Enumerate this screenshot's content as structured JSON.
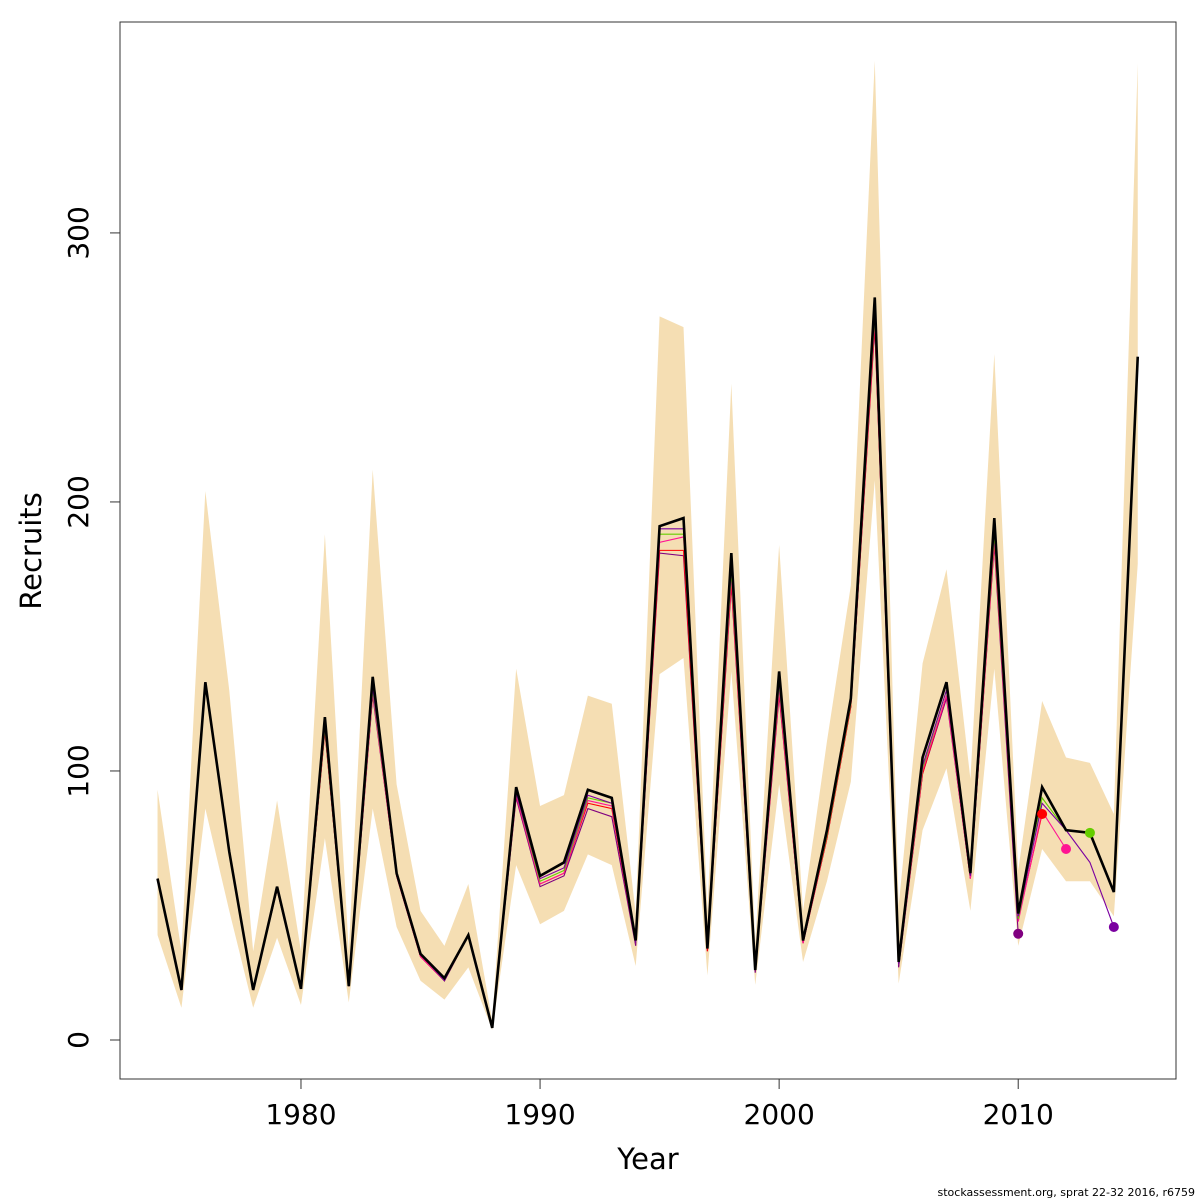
{
  "chart_data": {
    "type": "line",
    "x_label": "Year",
    "y_label": "Recruits",
    "footnote": "stockassessment.org, sprat 22-32 2016, r6759",
    "x": [
      1974,
      1975,
      1976,
      1977,
      1978,
      1979,
      1980,
      1981,
      1982,
      1983,
      1984,
      1985,
      1986,
      1987,
      1988,
      1989,
      1990,
      1991,
      1992,
      1993,
      1994,
      1995,
      1996,
      1997,
      1998,
      1999,
      2000,
      2001,
      2002,
      2003,
      2004,
      2005,
      2006,
      2007,
      2008,
      2009,
      2010,
      2011,
      2012,
      2013,
      2014,
      2015
    ],
    "xlim": [
      1972.43,
      2016.6
    ],
    "xticks": [
      1980,
      1990,
      2000,
      2010
    ],
    "ylim": [
      -14.5,
      378.4
    ],
    "yticks": [
      0,
      100,
      200,
      300
    ],
    "band": {
      "color": "#f5deb3",
      "upper": [
        93,
        33,
        204,
        130,
        33,
        89,
        33,
        188,
        33,
        212,
        95,
        48,
        35,
        58,
        7,
        138,
        87,
        91,
        128,
        125,
        47,
        269,
        265,
        48,
        244,
        36,
        184,
        48,
        111,
        169,
        364,
        50,
        140,
        175,
        97,
        255,
        63,
        126,
        105,
        103,
        84,
        363
      ],
      "lower": [
        39,
        12,
        86,
        48,
        12,
        38,
        13,
        75,
        14,
        86,
        42,
        22,
        15,
        27,
        3.7,
        65,
        43,
        48,
        69,
        65,
        27.5,
        136,
        142,
        24,
        137,
        20.5,
        95,
        29,
        59,
        96,
        208,
        21,
        78,
        101,
        48,
        138,
        35,
        71,
        59,
        59,
        46,
        177
      ]
    },
    "series": [
      {
        "color": "#800080",
        "values": [
          60,
          18.6,
          133,
          70,
          18.6,
          56,
          19,
          115,
          20,
          128,
          61,
          31,
          22,
          39,
          4.5,
          90,
          57,
          61,
          86,
          83,
          35,
          181,
          180,
          33,
          169,
          25,
          128,
          36,
          75,
          124,
          265,
          27,
          99,
          127,
          60,
          184,
          39.5,
          null,
          null,
          null,
          null,
          null
        ]
      },
      {
        "color": "#ff0000",
        "values": [
          60,
          18.6,
          133,
          70,
          18.6,
          56,
          19,
          115,
          20,
          129,
          61,
          31,
          22,
          39,
          4.5,
          91,
          58,
          62,
          88,
          86,
          36,
          182,
          182,
          33,
          170,
          26,
          129,
          36,
          75,
          124,
          266,
          28,
          99,
          128,
          60,
          185,
          45,
          84,
          null,
          null,
          null,
          null
        ]
      },
      {
        "color": "#ff1493",
        "values": [
          60,
          18.6,
          133,
          70,
          18.6,
          56,
          19,
          116,
          20,
          129,
          61,
          31,
          22,
          39,
          4.5,
          91,
          58,
          62,
          89,
          87,
          36,
          185,
          187,
          34,
          172,
          26,
          130,
          36,
          76,
          125,
          268,
          28,
          100,
          128,
          60,
          186,
          44,
          85,
          71,
          null,
          null,
          null
        ]
      },
      {
        "color": "#66cd00",
        "values": [
          60,
          18.6,
          133,
          70,
          18.6,
          56,
          19,
          116,
          20,
          130,
          62,
          32,
          22,
          39,
          4.5,
          92,
          59,
          63,
          90,
          88,
          36,
          188,
          188,
          34,
          174,
          26,
          132,
          37,
          76,
          125,
          270,
          28,
          101,
          130,
          61,
          188,
          45,
          90,
          78,
          77,
          null,
          null
        ]
      },
      {
        "color": "#7a00a0",
        "values": [
          60,
          18.6,
          133,
          70,
          18.6,
          56,
          19,
          117,
          20,
          131,
          62,
          32,
          22,
          39,
          4.5,
          92,
          60,
          64,
          91,
          88,
          36,
          190,
          190,
          34,
          176,
          26,
          133,
          37,
          77,
          126,
          272,
          28,
          102,
          130,
          61,
          190,
          46,
          88,
          78,
          66,
          42,
          null
        ]
      },
      {
        "color": "#000000",
        "values": [
          60,
          18.6,
          133,
          70,
          18.6,
          57,
          19,
          120,
          20,
          135,
          62,
          32,
          23,
          39,
          4.5,
          94,
          61,
          66,
          93,
          90,
          37,
          191,
          194,
          34,
          181,
          26,
          137,
          37,
          78,
          127,
          276,
          29,
          105,
          133,
          62,
          194,
          47,
          94,
          78,
          77,
          55,
          254
        ]
      }
    ]
  }
}
